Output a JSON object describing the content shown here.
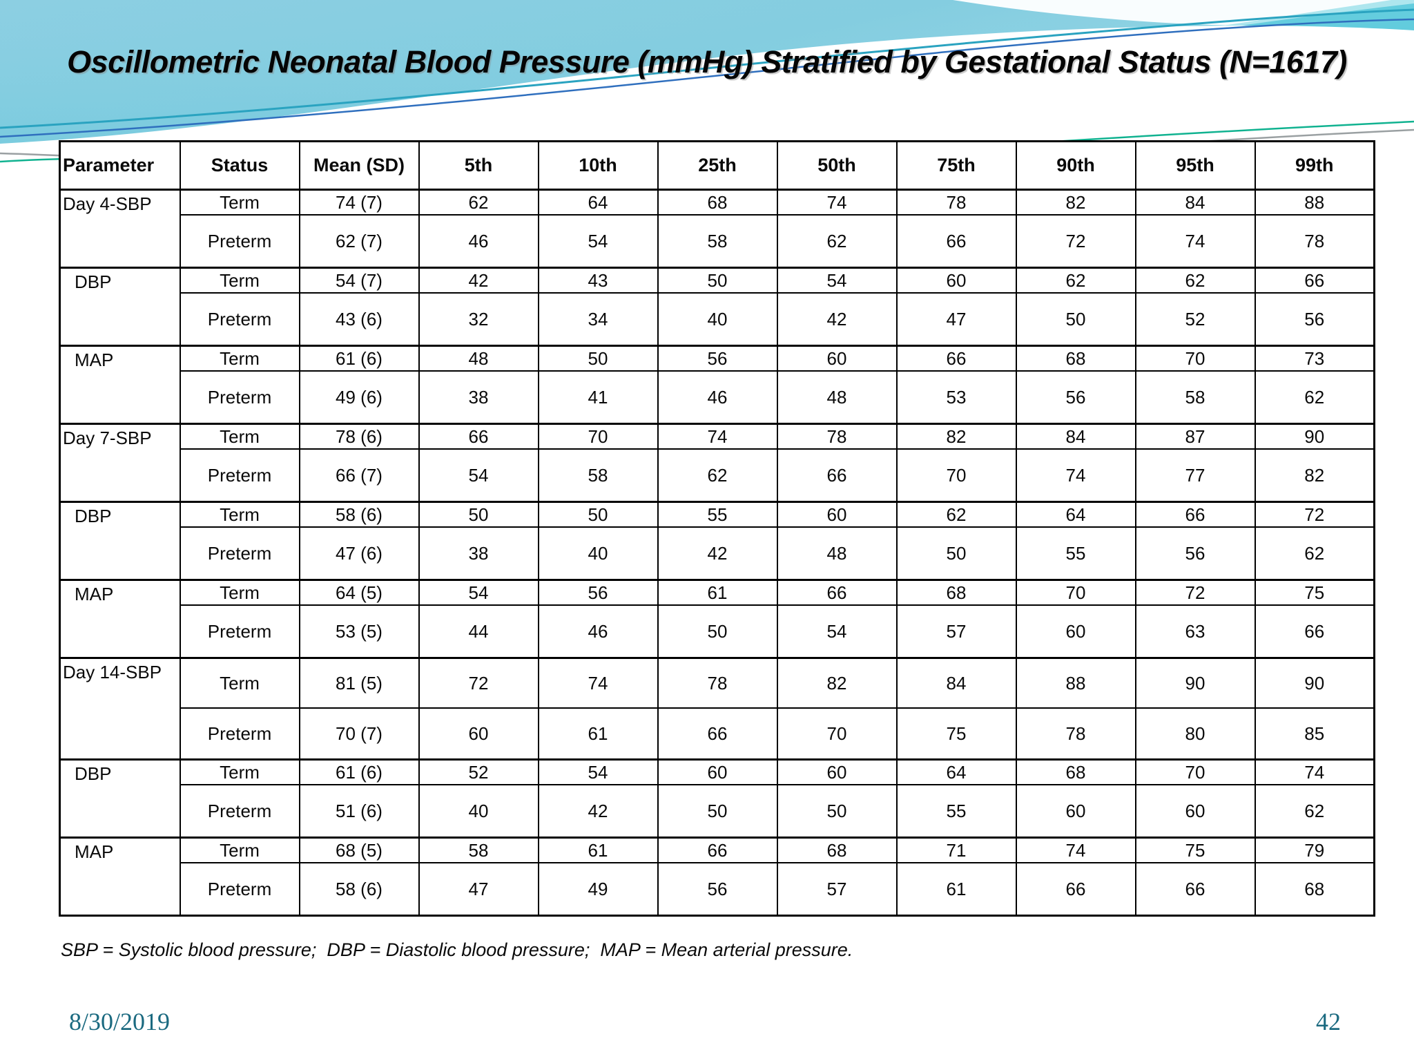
{
  "slide": {
    "title": "Oscillometric Neonatal Blood Pressure (mmHg) Stratified by Gestational Status (N=1617)",
    "footnote": "SBP = Systolic blood pressure;  DBP = Diastolic blood pressure;  MAP = Mean arterial pressure.",
    "date": "8/30/2019",
    "page_number": "42"
  },
  "colors": {
    "sky_light": "#8ccfe2",
    "sky_lighter": "#a5e0ec",
    "teal_band": "#57c8da",
    "teal_band_light": "#a5e3ec",
    "line_blue": "#2f6fbe",
    "line_teal": "#2aa3c0",
    "line_green": "#10b290",
    "line_gray": "#9aa0a2",
    "accent_serif_text": "#1b6a80",
    "table_border": "#000000"
  },
  "table": {
    "headers": [
      "Parameter",
      "Status",
      "Mean (SD)",
      "5th",
      "10th",
      "25th",
      "50th",
      "75th",
      "90th",
      "95th",
      "99th"
    ],
    "groups": [
      {
        "parameter": "Day 4-SBP",
        "indent": false,
        "tall": false,
        "rows": [
          {
            "status": "Term",
            "mean_sd": "74 (7)",
            "values": [
              "62",
              "64",
              "68",
              "74",
              "78",
              "82",
              "84",
              "88"
            ]
          },
          {
            "status": "Preterm",
            "mean_sd": "62 (7)",
            "values": [
              "46",
              "54",
              "58",
              "62",
              "66",
              "72",
              "74",
              "78"
            ]
          }
        ]
      },
      {
        "parameter": "DBP",
        "indent": true,
        "tall": false,
        "rows": [
          {
            "status": "Term",
            "mean_sd": "54 (7)",
            "values": [
              "42",
              "43",
              "50",
              "54",
              "60",
              "62",
              "62",
              "66"
            ]
          },
          {
            "status": "Preterm",
            "mean_sd": "43 (6)",
            "values": [
              "32",
              "34",
              "40",
              "42",
              "47",
              "50",
              "52",
              "56"
            ]
          }
        ]
      },
      {
        "parameter": "MAP",
        "indent": true,
        "tall": false,
        "rows": [
          {
            "status": "Term",
            "mean_sd": "61 (6)",
            "values": [
              "48",
              "50",
              "56",
              "60",
              "66",
              "68",
              "70",
              "73"
            ]
          },
          {
            "status": "Preterm",
            "mean_sd": "49 (6)",
            "values": [
              "38",
              "41",
              "46",
              "48",
              "53",
              "56",
              "58",
              "62"
            ]
          }
        ]
      },
      {
        "parameter": "Day 7-SBP",
        "indent": false,
        "tall": false,
        "rows": [
          {
            "status": "Term",
            "mean_sd": "78 (6)",
            "values": [
              "66",
              "70",
              "74",
              "78",
              "82",
              "84",
              "87",
              "90"
            ]
          },
          {
            "status": "Preterm",
            "mean_sd": "66 (7)",
            "values": [
              "54",
              "58",
              "62",
              "66",
              "70",
              "74",
              "77",
              "82"
            ]
          }
        ]
      },
      {
        "parameter": "DBP",
        "indent": true,
        "tall": false,
        "rows": [
          {
            "status": "Term",
            "mean_sd": "58 (6)",
            "values": [
              "50",
              "50",
              "55",
              "60",
              "62",
              "64",
              "66",
              "72"
            ]
          },
          {
            "status": "Preterm",
            "mean_sd": "47 (6)",
            "values": [
              "38",
              "40",
              "42",
              "48",
              "50",
              "55",
              "56",
              "62"
            ]
          }
        ]
      },
      {
        "parameter": "MAP",
        "indent": true,
        "tall": false,
        "rows": [
          {
            "status": "Term",
            "mean_sd": "64 (5)",
            "values": [
              "54",
              "56",
              "61",
              "66",
              "68",
              "70",
              "72",
              "75"
            ]
          },
          {
            "status": "Preterm",
            "mean_sd": "53 (5)",
            "values": [
              "44",
              "46",
              "50",
              "54",
              "57",
              "60",
              "63",
              "66"
            ]
          }
        ]
      },
      {
        "parameter": "Day 14-SBP",
        "indent": false,
        "tall": true,
        "rows": [
          {
            "status": "Term",
            "mean_sd": "81 (5)",
            "values": [
              "72",
              "74",
              "78",
              "82",
              "84",
              "88",
              "90",
              "90"
            ]
          },
          {
            "status": "Preterm",
            "mean_sd": "70 (7)",
            "values": [
              "60",
              "61",
              "66",
              "70",
              "75",
              "78",
              "80",
              "85"
            ]
          }
        ]
      },
      {
        "parameter": "DBP",
        "indent": true,
        "tall": false,
        "rows": [
          {
            "status": "Term",
            "mean_sd": "61 (6)",
            "values": [
              "52",
              "54",
              "60",
              "60",
              "64",
              "68",
              "70",
              "74"
            ]
          },
          {
            "status": "Preterm",
            "mean_sd": "51 (6)",
            "values": [
              "40",
              "42",
              "50",
              "50",
              "55",
              "60",
              "60",
              "62"
            ]
          }
        ]
      },
      {
        "parameter": "MAP",
        "indent": true,
        "tall": false,
        "rows": [
          {
            "status": "Term",
            "mean_sd": "68 (5)",
            "values": [
              "58",
              "61",
              "66",
              "68",
              "71",
              "74",
              "75",
              "79"
            ]
          },
          {
            "status": "Preterm",
            "mean_sd": "58 (6)",
            "values": [
              "47",
              "49",
              "56",
              "57",
              "61",
              "66",
              "66",
              "68"
            ]
          }
        ]
      }
    ]
  }
}
